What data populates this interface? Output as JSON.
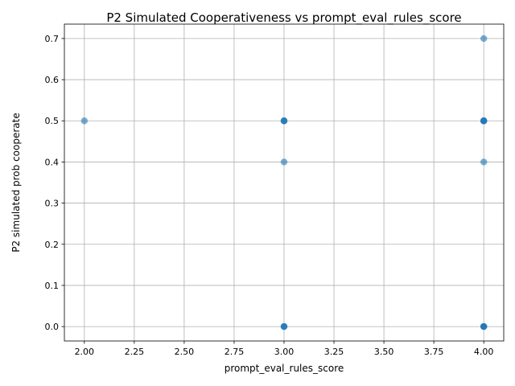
{
  "chart_data": {
    "type": "scatter",
    "title": "P2 Simulated Cooperativeness vs prompt_eval_rules_score",
    "xlabel": "prompt_eval_rules_score",
    "ylabel": "P2 simulated prob cooperate",
    "xlim": [
      1.9,
      4.1
    ],
    "ylim": [
      -0.035,
      0.735
    ],
    "xticks": [
      2.0,
      2.25,
      2.5,
      2.75,
      3.0,
      3.25,
      3.5,
      3.75,
      4.0
    ],
    "xtick_labels": [
      "2.00",
      "2.25",
      "2.50",
      "2.75",
      "3.00",
      "3.25",
      "3.50",
      "3.75",
      "4.00"
    ],
    "yticks": [
      0.0,
      0.1,
      0.2,
      0.3,
      0.4,
      0.5,
      0.6,
      0.7
    ],
    "ytick_labels": [
      "0.0",
      "0.1",
      "0.2",
      "0.3",
      "0.4",
      "0.5",
      "0.6",
      "0.7"
    ],
    "grid": true,
    "color": "#1f77b4",
    "points": [
      {
        "x": 2,
        "y": 0.5
      },
      {
        "x": 3,
        "y": 0.5
      },
      {
        "x": 3,
        "y": 0.5
      },
      {
        "x": 3,
        "y": 0.5
      },
      {
        "x": 3,
        "y": 0.4
      },
      {
        "x": 3,
        "y": 0.0
      },
      {
        "x": 3,
        "y": 0.0
      },
      {
        "x": 3,
        "y": 0.0
      },
      {
        "x": 4,
        "y": 0.7
      },
      {
        "x": 4,
        "y": 0.5
      },
      {
        "x": 4,
        "y": 0.5
      },
      {
        "x": 4,
        "y": 0.5
      },
      {
        "x": 4,
        "y": 0.5
      },
      {
        "x": 4,
        "y": 0.4
      },
      {
        "x": 4,
        "y": 0.0
      },
      {
        "x": 4,
        "y": 0.0
      },
      {
        "x": 4,
        "y": 0.0
      },
      {
        "x": 4,
        "y": 0.0
      }
    ]
  }
}
